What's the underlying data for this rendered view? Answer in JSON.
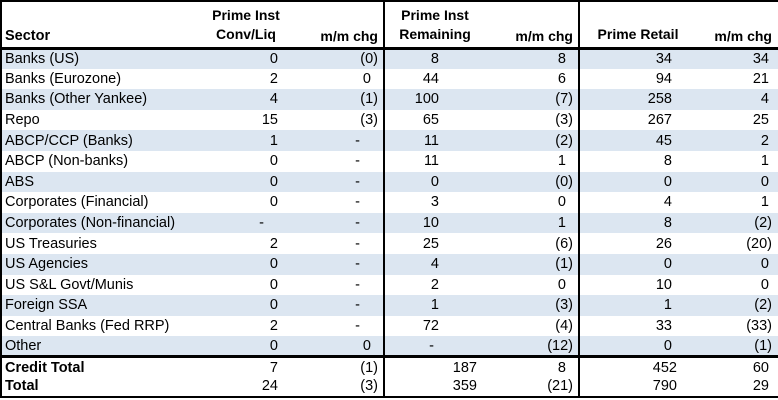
{
  "colors": {
    "row_band": "#dce6f1",
    "grid_line": "#000000",
    "text": "#000000",
    "background": "#ffffff"
  },
  "header": {
    "sector": "Sector",
    "groups": [
      {
        "top": "Prime Inst",
        "bottom": "Conv/Liq",
        "chg": "m/m chg"
      },
      {
        "top": "Prime Inst",
        "bottom": "Remaining",
        "chg": "m/m chg"
      },
      {
        "top": "",
        "bottom": "Prime Retail",
        "chg": "m/m chg"
      }
    ]
  },
  "chart_data": {
    "type": "table",
    "columns": [
      "Sector",
      "Prime Inst Conv/Liq",
      "m/m chg",
      "Prime Inst Remaining",
      "m/m chg",
      "Prime Retail",
      "m/m chg"
    ],
    "negative_format": "parentheses",
    "rows": [
      {
        "sector": "Banks (US)",
        "values": [
          "0",
          "(0)",
          "8",
          "8",
          "34",
          "34"
        ],
        "is_total": false
      },
      {
        "sector": "Banks (Eurozone)",
        "values": [
          "2",
          "0",
          "44",
          "6",
          "94",
          "21"
        ],
        "is_total": false
      },
      {
        "sector": "Banks (Other Yankee)",
        "values": [
          "4",
          "(1)",
          "100",
          "(7)",
          "258",
          "4"
        ],
        "is_total": false
      },
      {
        "sector": "Repo",
        "values": [
          "15",
          "(3)",
          "65",
          "(3)",
          "267",
          "25"
        ],
        "is_total": false
      },
      {
        "sector": "ABCP/CCP (Banks)",
        "values": [
          "1",
          "-",
          "11",
          "(2)",
          "45",
          "2"
        ],
        "is_total": false
      },
      {
        "sector": "ABCP (Non-banks)",
        "values": [
          "0",
          "-",
          "11",
          "1",
          "8",
          "1"
        ],
        "is_total": false
      },
      {
        "sector": "ABS",
        "values": [
          "0",
          "-",
          "0",
          "(0)",
          "0",
          "0"
        ],
        "is_total": false
      },
      {
        "sector": "Corporates (Financial)",
        "values": [
          "0",
          "-",
          "3",
          "0",
          "4",
          "1"
        ],
        "is_total": false
      },
      {
        "sector": "Corporates (Non-financial)",
        "values": [
          "-",
          "-",
          "10",
          "1",
          "8",
          "(2)"
        ],
        "is_total": false
      },
      {
        "sector": "US Treasuries",
        "values": [
          "2",
          "-",
          "25",
          "(6)",
          "26",
          "(20)"
        ],
        "is_total": false
      },
      {
        "sector": "US Agencies",
        "values": [
          "0",
          "-",
          "4",
          "(1)",
          "0",
          "0"
        ],
        "is_total": false
      },
      {
        "sector": "US S&L Govt/Munis",
        "values": [
          "0",
          "-",
          "2",
          "0",
          "10",
          "0"
        ],
        "is_total": false
      },
      {
        "sector": "Foreign SSA",
        "values": [
          "0",
          "-",
          "1",
          "(3)",
          "1",
          "(2)"
        ],
        "is_total": false
      },
      {
        "sector": "Central Banks (Fed RRP)",
        "values": [
          "2",
          "-",
          "72",
          "(4)",
          "33",
          "(33)"
        ],
        "is_total": false
      },
      {
        "sector": "Other",
        "values": [
          "0",
          "0",
          "-",
          "(12)",
          "0",
          "(1)"
        ],
        "is_total": false
      },
      {
        "sector": "Credit Total",
        "values": [
          "7",
          "(1)",
          "187",
          "8",
          "452",
          "60"
        ],
        "is_total": true
      },
      {
        "sector": "Total",
        "values": [
          "24",
          "(3)",
          "359",
          "(21)",
          "790",
          "29"
        ],
        "is_total": true
      }
    ]
  }
}
